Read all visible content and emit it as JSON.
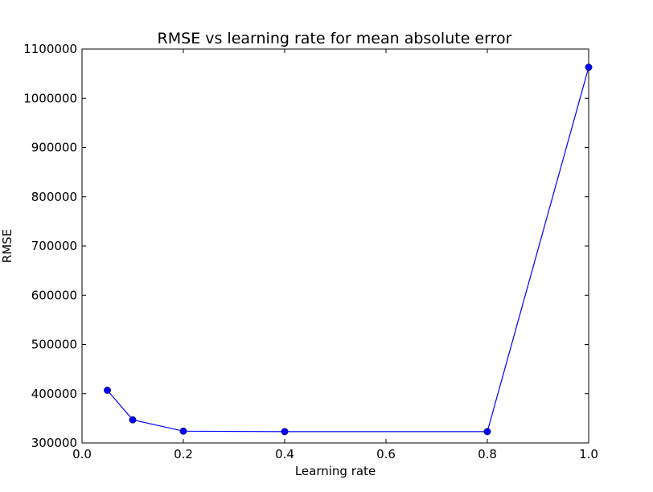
{
  "chart_data": {
    "type": "line",
    "title": "RMSE vs learning rate for mean absolute error",
    "xlabel": "Learning rate",
    "ylabel": "RMSE",
    "xlim": [
      0.0,
      1.0
    ],
    "ylim": [
      300000,
      1100000
    ],
    "xticks": [
      0.0,
      0.2,
      0.4,
      0.6,
      0.8,
      1.0
    ],
    "xtick_labels": [
      "0.0",
      "0.2",
      "0.4",
      "0.6",
      "0.8",
      "1.0"
    ],
    "yticks": [
      300000,
      400000,
      500000,
      600000,
      700000,
      800000,
      900000,
      1000000,
      1100000
    ],
    "ytick_labels": [
      "300000",
      "400000",
      "500000",
      "600000",
      "700000",
      "800000",
      "900000",
      "1000000",
      "1100000"
    ],
    "grid": false,
    "series": [
      {
        "color": "#0000ff",
        "marker": "circle",
        "x": [
          0.05,
          0.1,
          0.2,
          0.4,
          0.8,
          1.0
        ],
        "y": [
          407000,
          347000,
          324000,
          323000,
          323000,
          1063000
        ]
      }
    ]
  }
}
